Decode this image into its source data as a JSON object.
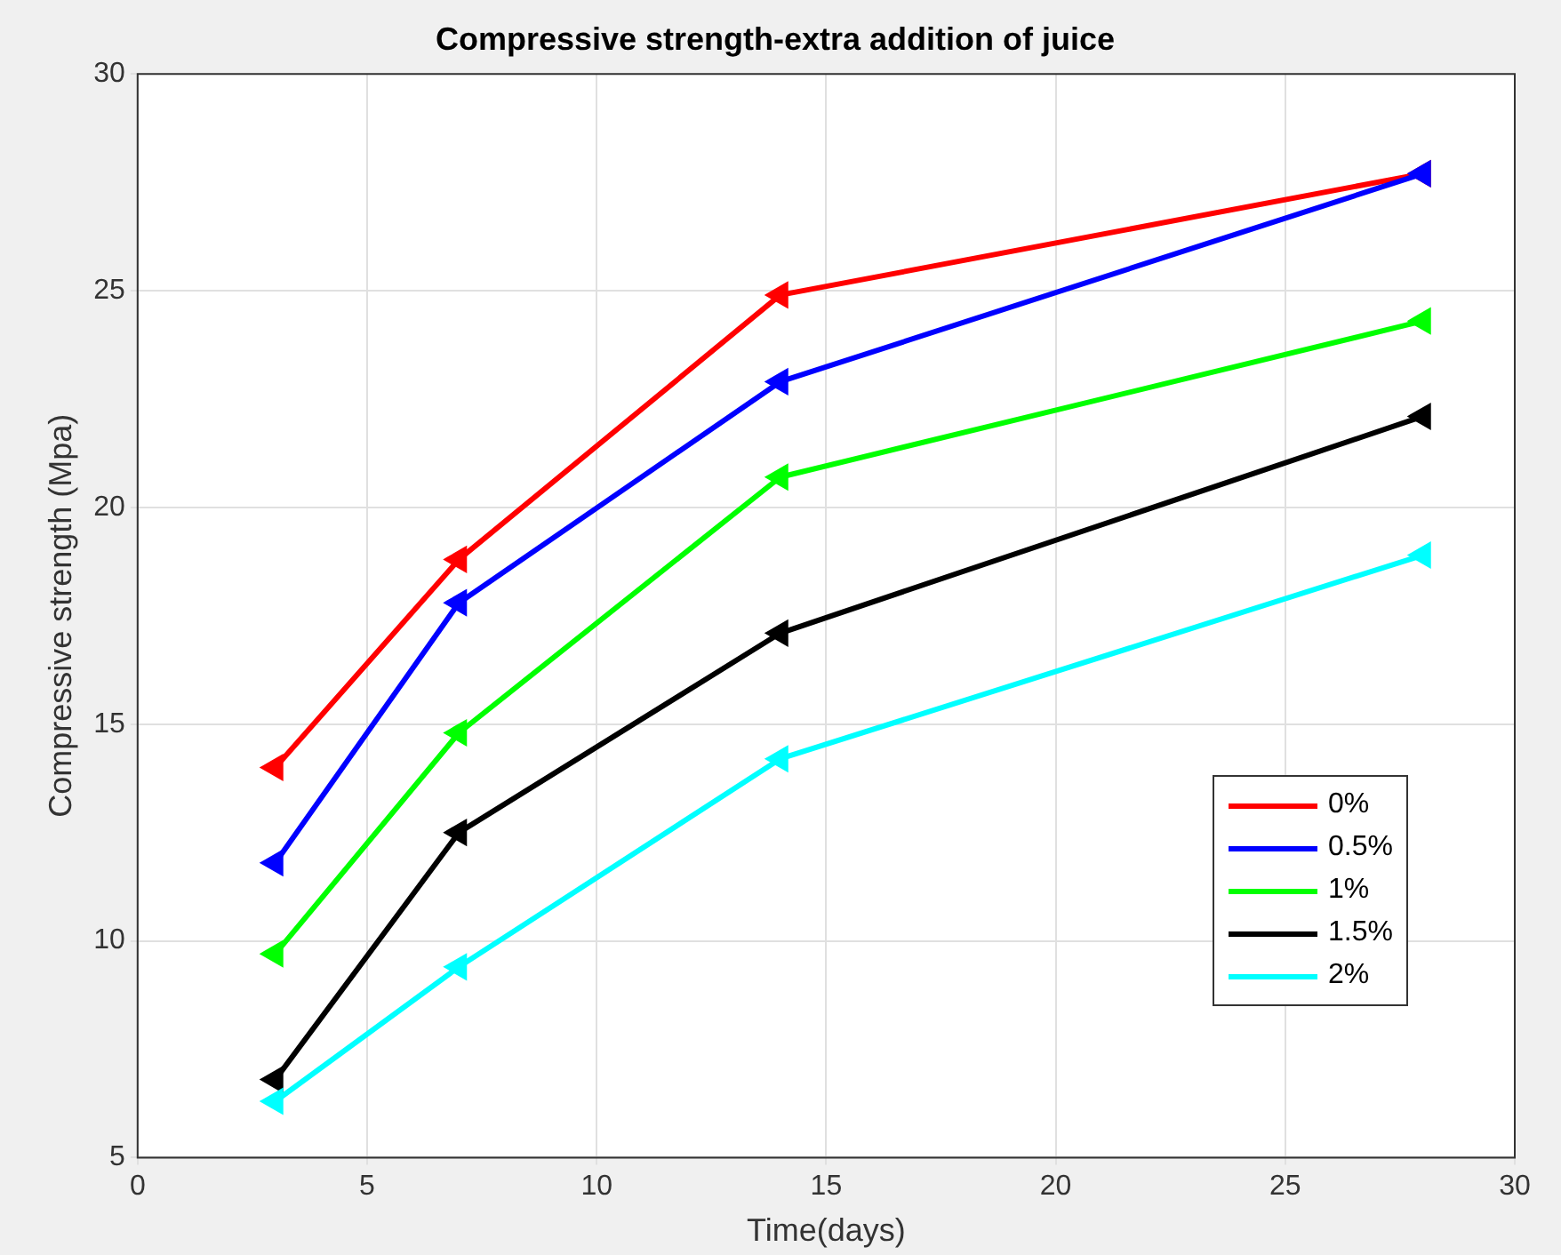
{
  "chart_data": {
    "type": "line",
    "title": "Compressive strength-extra addition of juice",
    "xlabel": "Time(days)",
    "ylabel": "Compressive strength (Mpa)",
    "x": [
      3,
      7,
      14,
      28
    ],
    "series": [
      {
        "name": "0%",
        "color": "#ff0000",
        "values": [
          14.0,
          18.8,
          24.9,
          27.7
        ]
      },
      {
        "name": "0.5%",
        "color": "#0000ff",
        "values": [
          11.8,
          17.8,
          22.9,
          27.7
        ]
      },
      {
        "name": "1%",
        "color": "#00ff00",
        "values": [
          9.7,
          14.8,
          20.7,
          24.3
        ]
      },
      {
        "name": "1.5%",
        "color": "#000000",
        "values": [
          6.8,
          12.5,
          17.1,
          22.1
        ]
      },
      {
        "name": "2%",
        "color": "#00ffff",
        "values": [
          6.3,
          9.4,
          14.2,
          18.9
        ]
      }
    ],
    "xlim": [
      0,
      30
    ],
    "xticks": [
      0,
      5,
      10,
      15,
      20,
      25,
      30
    ],
    "ylim": [
      5,
      30
    ],
    "yticks": [
      5,
      10,
      15,
      20,
      25,
      30
    ],
    "grid": true,
    "legend": "bottom right",
    "marker": "triangle",
    "line_style": "solid"
  }
}
